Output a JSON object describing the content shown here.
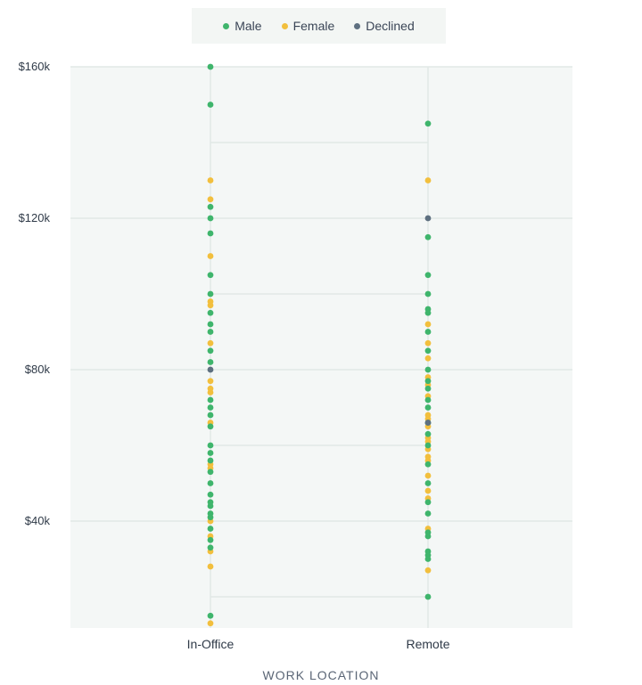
{
  "chart_data": {
    "type": "scatter",
    "title": "",
    "xlabel": "WORK LOCATION",
    "ylabel": "",
    "categories": [
      "In-Office",
      "Remote"
    ],
    "ylim": [
      13000,
      160000
    ],
    "yticks": [
      40000,
      80000,
      120000,
      160000
    ],
    "ytick_labels": [
      "$40k",
      "$80k",
      "$120k",
      "$160k"
    ],
    "grid": true,
    "legend_position": "top-center",
    "series": [
      {
        "name": "Male",
        "color": "#3fb56c",
        "points": [
          {
            "x": "In-Office",
            "y": 160000
          },
          {
            "x": "In-Office",
            "y": 150000
          },
          {
            "x": "In-Office",
            "y": 123000
          },
          {
            "x": "In-Office",
            "y": 120000
          },
          {
            "x": "In-Office",
            "y": 116000
          },
          {
            "x": "In-Office",
            "y": 105000
          },
          {
            "x": "In-Office",
            "y": 100000
          },
          {
            "x": "In-Office",
            "y": 95000
          },
          {
            "x": "In-Office",
            "y": 92000
          },
          {
            "x": "In-Office",
            "y": 90000
          },
          {
            "x": "In-Office",
            "y": 85000
          },
          {
            "x": "In-Office",
            "y": 82000
          },
          {
            "x": "In-Office",
            "y": 72000
          },
          {
            "x": "In-Office",
            "y": 70000
          },
          {
            "x": "In-Office",
            "y": 68000
          },
          {
            "x": "In-Office",
            "y": 65000
          },
          {
            "x": "In-Office",
            "y": 60000
          },
          {
            "x": "In-Office",
            "y": 58000
          },
          {
            "x": "In-Office",
            "y": 56000
          },
          {
            "x": "In-Office",
            "y": 53000
          },
          {
            "x": "In-Office",
            "y": 50000
          },
          {
            "x": "In-Office",
            "y": 47000
          },
          {
            "x": "In-Office",
            "y": 45000
          },
          {
            "x": "In-Office",
            "y": 44000
          },
          {
            "x": "In-Office",
            "y": 42000
          },
          {
            "x": "In-Office",
            "y": 41000
          },
          {
            "x": "In-Office",
            "y": 38000
          },
          {
            "x": "In-Office",
            "y": 35000
          },
          {
            "x": "In-Office",
            "y": 33000
          },
          {
            "x": "In-Office",
            "y": 15000
          },
          {
            "x": "Remote",
            "y": 145000
          },
          {
            "x": "Remote",
            "y": 115000
          },
          {
            "x": "Remote",
            "y": 105000
          },
          {
            "x": "Remote",
            "y": 100000
          },
          {
            "x": "Remote",
            "y": 96000
          },
          {
            "x": "Remote",
            "y": 95000
          },
          {
            "x": "Remote",
            "y": 90000
          },
          {
            "x": "Remote",
            "y": 85000
          },
          {
            "x": "Remote",
            "y": 80000
          },
          {
            "x": "Remote",
            "y": 77000
          },
          {
            "x": "Remote",
            "y": 75000
          },
          {
            "x": "Remote",
            "y": 72000
          },
          {
            "x": "Remote",
            "y": 70000
          },
          {
            "x": "Remote",
            "y": 66000
          },
          {
            "x": "Remote",
            "y": 63000
          },
          {
            "x": "Remote",
            "y": 60000
          },
          {
            "x": "Remote",
            "y": 55000
          },
          {
            "x": "Remote",
            "y": 50000
          },
          {
            "x": "Remote",
            "y": 45000
          },
          {
            "x": "Remote",
            "y": 42000
          },
          {
            "x": "Remote",
            "y": 37000
          },
          {
            "x": "Remote",
            "y": 36000
          },
          {
            "x": "Remote",
            "y": 32000
          },
          {
            "x": "Remote",
            "y": 31000
          },
          {
            "x": "Remote",
            "y": 30000
          },
          {
            "x": "Remote",
            "y": 20000
          }
        ]
      },
      {
        "name": "Female",
        "color": "#f2bf3d",
        "points": [
          {
            "x": "In-Office",
            "y": 130000
          },
          {
            "x": "In-Office",
            "y": 125000
          },
          {
            "x": "In-Office",
            "y": 110000
          },
          {
            "x": "In-Office",
            "y": 98000
          },
          {
            "x": "In-Office",
            "y": 97000
          },
          {
            "x": "In-Office",
            "y": 87000
          },
          {
            "x": "In-Office",
            "y": 77000
          },
          {
            "x": "In-Office",
            "y": 75000
          },
          {
            "x": "In-Office",
            "y": 74000
          },
          {
            "x": "In-Office",
            "y": 66000
          },
          {
            "x": "In-Office",
            "y": 55000
          },
          {
            "x": "In-Office",
            "y": 54000
          },
          {
            "x": "In-Office",
            "y": 40000
          },
          {
            "x": "In-Office",
            "y": 36000
          },
          {
            "x": "In-Office",
            "y": 32000
          },
          {
            "x": "In-Office",
            "y": 28000
          },
          {
            "x": "In-Office",
            "y": 13000
          },
          {
            "x": "Remote",
            "y": 130000
          },
          {
            "x": "Remote",
            "y": 92000
          },
          {
            "x": "Remote",
            "y": 87000
          },
          {
            "x": "Remote",
            "y": 83000
          },
          {
            "x": "Remote",
            "y": 78000
          },
          {
            "x": "Remote",
            "y": 76000
          },
          {
            "x": "Remote",
            "y": 73000
          },
          {
            "x": "Remote",
            "y": 68000
          },
          {
            "x": "Remote",
            "y": 67000
          },
          {
            "x": "Remote",
            "y": 65000
          },
          {
            "x": "Remote",
            "y": 62000
          },
          {
            "x": "Remote",
            "y": 61000
          },
          {
            "x": "Remote",
            "y": 59000
          },
          {
            "x": "Remote",
            "y": 57000
          },
          {
            "x": "Remote",
            "y": 56000
          },
          {
            "x": "Remote",
            "y": 52000
          },
          {
            "x": "Remote",
            "y": 48000
          },
          {
            "x": "Remote",
            "y": 46000
          },
          {
            "x": "Remote",
            "y": 38000
          },
          {
            "x": "Remote",
            "y": 27000
          }
        ]
      },
      {
        "name": "Declined",
        "color": "#5e7080",
        "points": [
          {
            "x": "In-Office",
            "y": 80000
          },
          {
            "x": "Remote",
            "y": 120000
          },
          {
            "x": "Remote",
            "y": 66000
          }
        ]
      }
    ]
  }
}
